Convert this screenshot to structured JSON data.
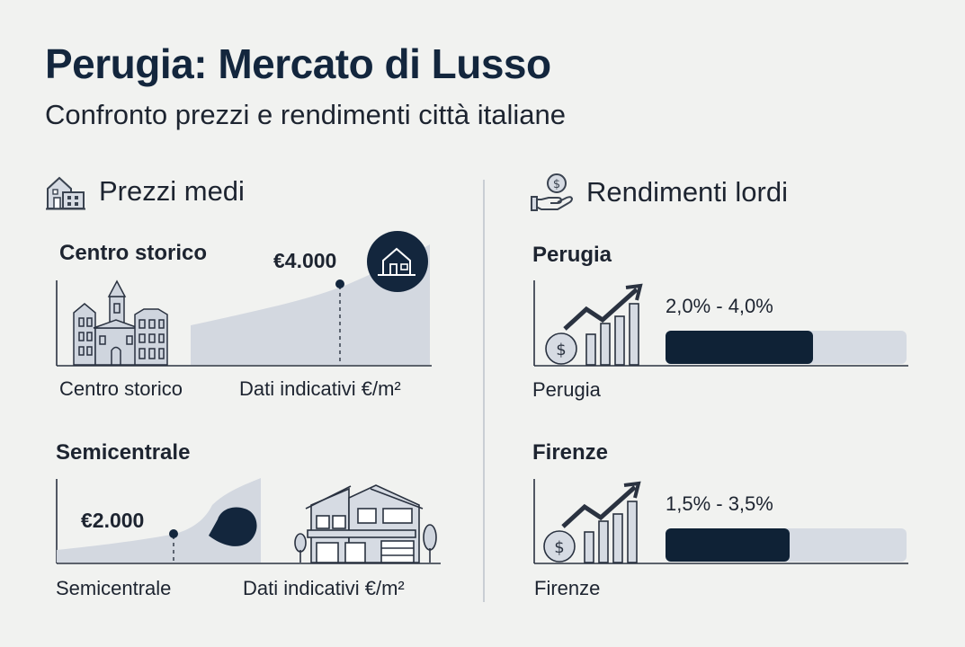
{
  "header": {
    "title": "Perugia: Mercato di Lusso",
    "subtitle": "Confronto prezzi e rendimenti città italiane"
  },
  "sections": {
    "prices": {
      "title": "Prezzi medi",
      "icon": "buildings-icon"
    },
    "yields": {
      "title": "Rendimenti lordi",
      "icon": "hand-coin-icon"
    }
  },
  "prices": [
    {
      "label": "Centro storico",
      "value_label": "€4.000",
      "caption_left": "Centro storico",
      "caption_right": "Dati indicativi €/m²",
      "icon": "historic-buildings-icon"
    },
    {
      "label": "Semicentrale",
      "value_label": "€2.000",
      "caption_left": "Semicentrale",
      "caption_right": "Dati indicativi €/m²",
      "icon": "modern-house-icon"
    }
  ],
  "yields": [
    {
      "label": "Perugia",
      "range_label": "2,0% - 4,0%",
      "caption": "Perugia",
      "icon": "coin-growth-icon"
    },
    {
      "label": "Firenze",
      "range_label": "1,5% - 3,5%",
      "caption": "Firenze",
      "icon": "coin-growth-icon"
    }
  ],
  "chart_data": [
    {
      "type": "area",
      "title": "Centro storico",
      "unit": "€/m²",
      "highlight": {
        "label": "€4.000",
        "value": 4000
      }
    },
    {
      "type": "area",
      "title": "Semicentrale",
      "unit": "€/m²",
      "highlight": {
        "label": "€2.000",
        "value": 2000
      }
    },
    {
      "type": "bar",
      "orientation": "horizontal",
      "categories": [
        "Perugia",
        "Firenze"
      ],
      "series": [
        {
          "values": [
            [
              2.0,
              4.0
            ],
            [
              1.5,
              3.5
            ]
          ]
        }
      ],
      "unit": "%"
    }
  ],
  "colors": {
    "navy": "#13263d",
    "bar_dark": "#0f2236",
    "area_light": "#d3d8e0",
    "track": "#d6dbe3",
    "icon_stroke": "#3a4350",
    "icon_fill": "#cfd5de"
  }
}
